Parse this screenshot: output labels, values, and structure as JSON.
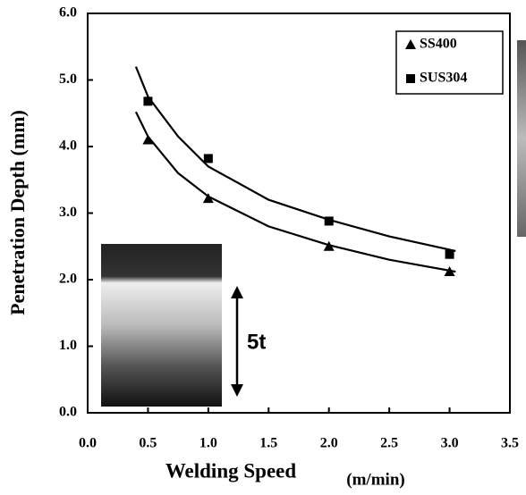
{
  "chart_data": {
    "type": "scatter",
    "xlabel": "Welding Speed",
    "xlabel_unit": "(m/min)",
    "ylabel": "Penetration Depth (mm)",
    "xlim": [
      0,
      3.5
    ],
    "ylim": [
      0,
      6
    ],
    "xticks": [
      {
        "value": 0,
        "label": "0.0"
      },
      0.5,
      {
        "value": 1,
        "label": "1.0"
      },
      1.5,
      {
        "value": 2,
        "label": "2.0"
      },
      2.5,
      {
        "value": 3,
        "label": "3.0"
      },
      3.5
    ],
    "yticks": [
      {
        "value": 0,
        "label": "0.0"
      },
      {
        "value": 1,
        "label": "1.0"
      },
      {
        "value": 2,
        "label": "2.0"
      },
      {
        "value": 3,
        "label": "3.0"
      },
      {
        "value": 4,
        "label": "4.0"
      },
      {
        "value": 5,
        "label": "5.0"
      },
      {
        "value": 6,
        "label": "6.0"
      }
    ],
    "legend": "upper right",
    "series": [
      {
        "name": "SS400",
        "marker": "triangle",
        "color": "#000000",
        "x": [
          0.5,
          1,
          2,
          3
        ],
        "values": [
          4.1,
          3.22,
          2.5,
          2.12
        ]
      },
      {
        "name": "SUS304",
        "marker": "square",
        "color": "#000000",
        "x": [
          0.5,
          1,
          2,
          3
        ],
        "values": [
          4.68,
          3.82,
          2.88,
          2.38
        ]
      }
    ],
    "fit_curves": [
      {
        "x": [
          0.4,
          0.5,
          0.75,
          1,
          1.5,
          2,
          2.5,
          3.05
        ],
        "values": [
          4.52,
          4.15,
          3.6,
          3.25,
          2.8,
          2.52,
          2.3,
          2.12
        ]
      },
      {
        "x": [
          0.4,
          0.5,
          0.75,
          1,
          1.5,
          2,
          2.5,
          3.05
        ],
        "values": [
          5.2,
          4.75,
          4.15,
          3.7,
          3.2,
          2.9,
          2.65,
          2.43
        ]
      }
    ]
  },
  "inset": {
    "label": "5t"
  }
}
